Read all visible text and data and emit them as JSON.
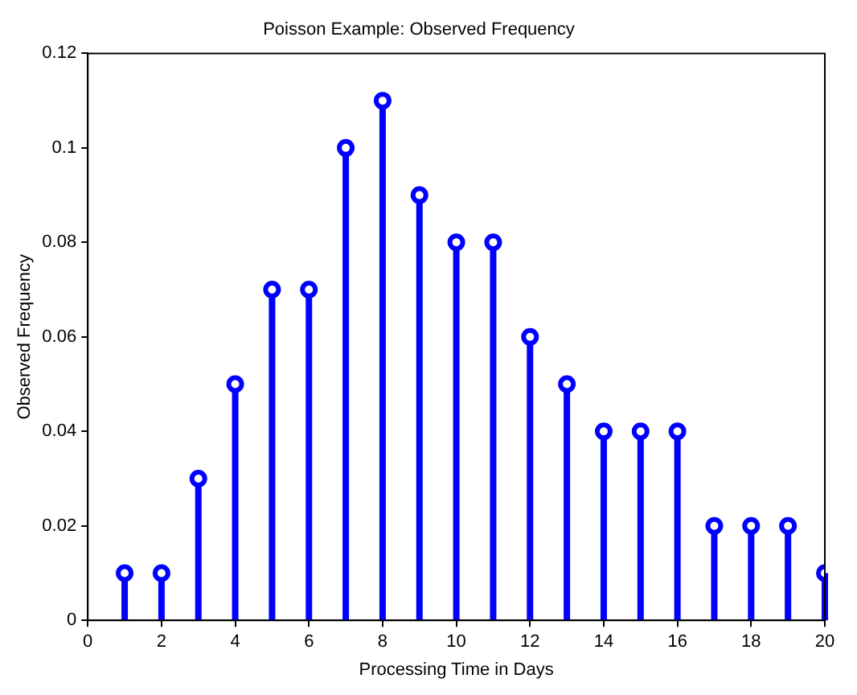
{
  "chart_data": {
    "type": "lollipop",
    "title": "Poisson Example: Observed Frequency",
    "xlabel": "Processing Time in Days",
    "ylabel": "Observed Frequency",
    "x": [
      1,
      2,
      3,
      4,
      5,
      6,
      7,
      8,
      9,
      10,
      11,
      12,
      13,
      14,
      15,
      16,
      17,
      18,
      19,
      20
    ],
    "values": [
      0.01,
      0.01,
      0.03,
      0.05,
      0.07,
      0.07,
      0.1,
      0.11,
      0.09,
      0.08,
      0.08,
      0.06,
      0.05,
      0.04,
      0.04,
      0.04,
      0.02,
      0.02,
      0.02,
      0.01
    ],
    "color": "#0000ff",
    "marker": "circle",
    "xlim": [
      0,
      20
    ],
    "xticks": [
      0,
      2,
      4,
      6,
      8,
      10,
      12,
      14,
      16,
      18,
      20
    ],
    "ylim": [
      0,
      0.12
    ],
    "yticks": [
      0,
      0.02,
      0.04,
      0.06,
      0.08,
      0.1,
      0.12
    ],
    "grid": false
  }
}
